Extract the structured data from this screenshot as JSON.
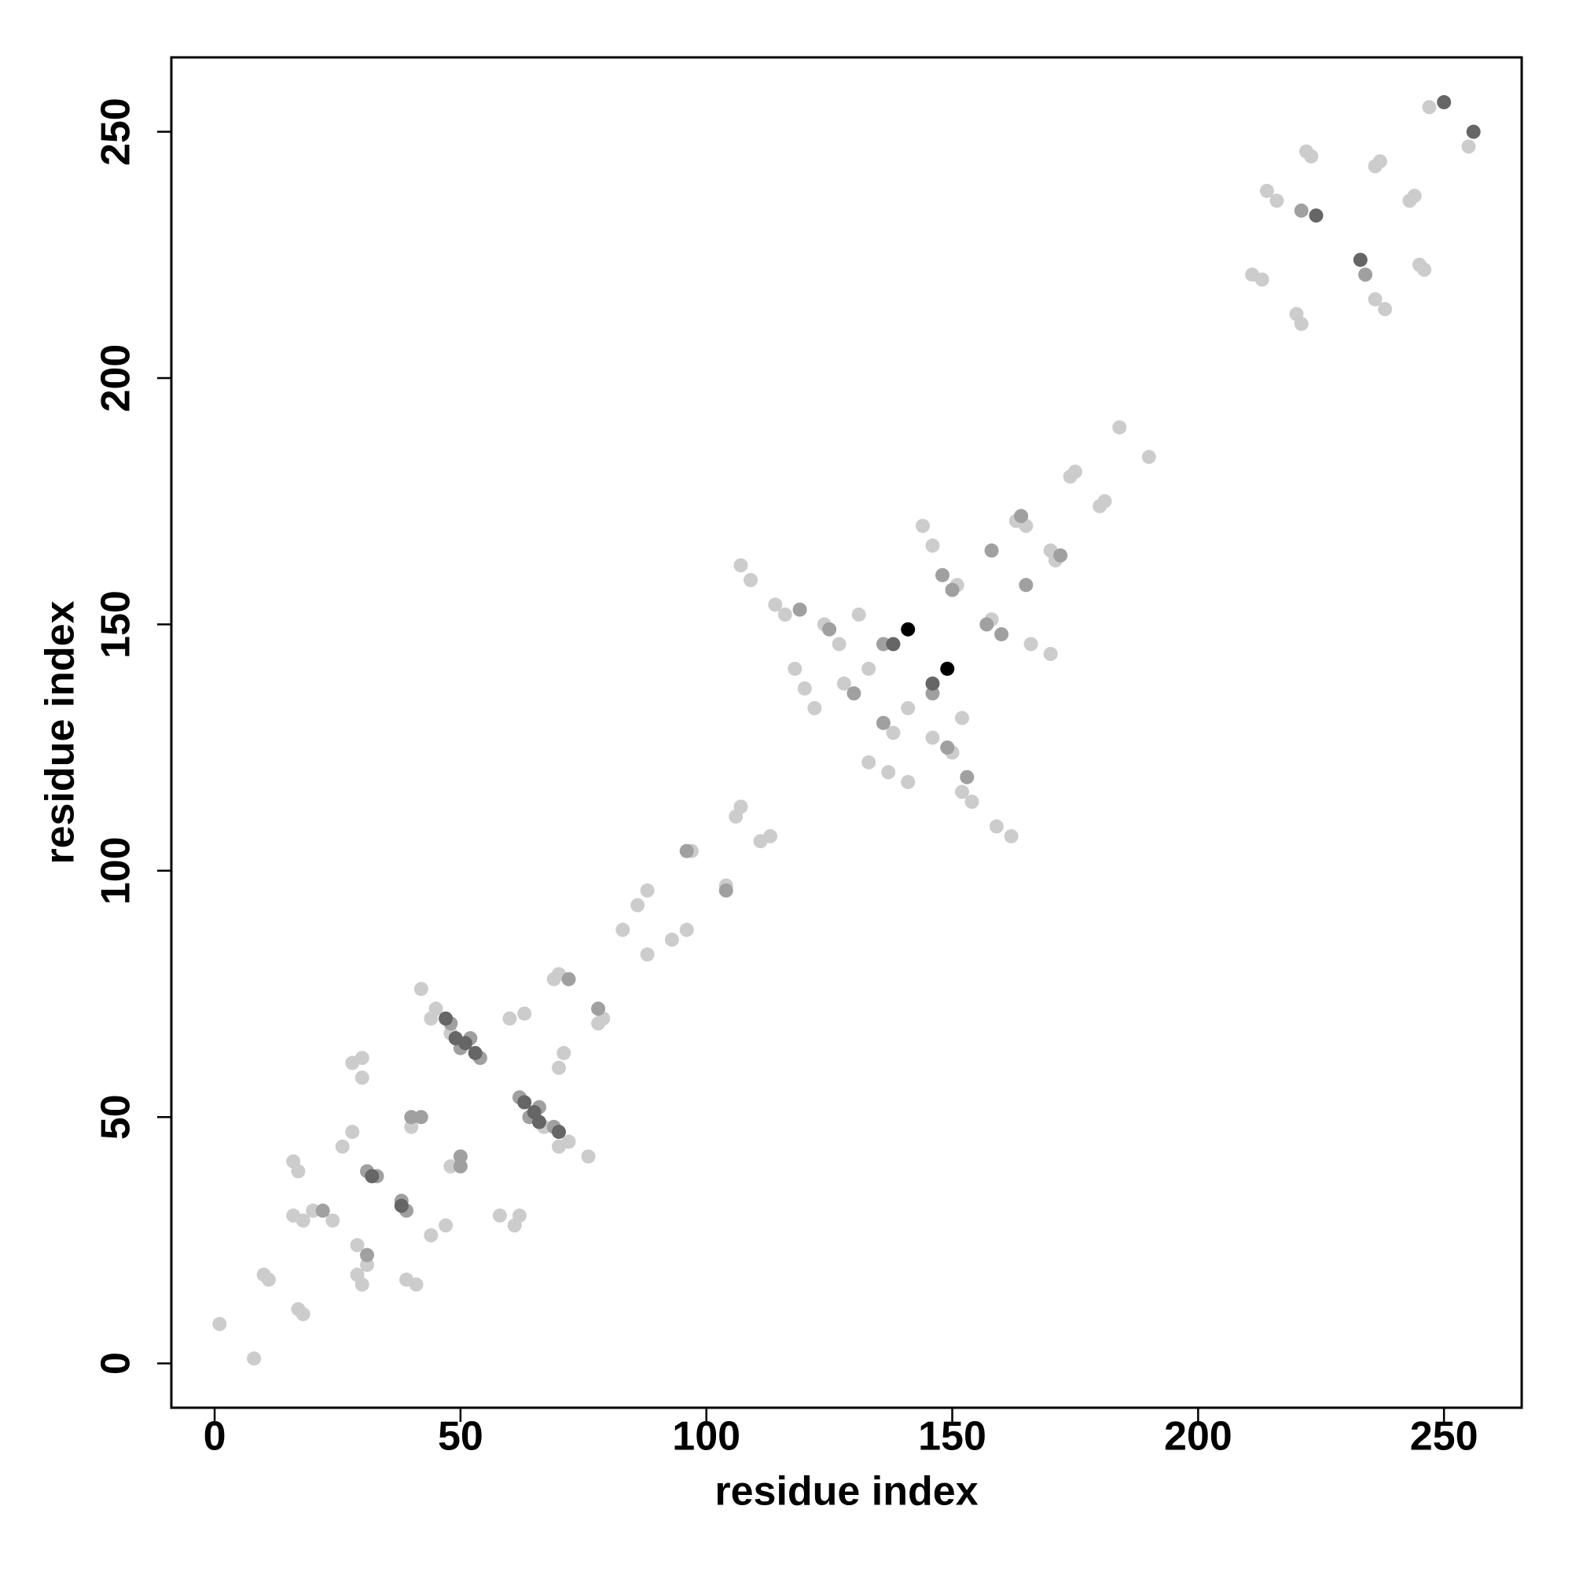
{
  "chart_data": {
    "type": "scatter",
    "xlabel": "residue index",
    "ylabel": "residue index",
    "xlim": [
      -8.8,
      265.8
    ],
    "ylim": [
      -9,
      265.1
    ],
    "xticks": [
      0,
      50,
      100,
      150,
      200,
      250
    ],
    "yticks": [
      0,
      50,
      100,
      150,
      200,
      250
    ],
    "series": [
      {
        "color": "#cccccc",
        "x": [
          1,
          11,
          10,
          16,
          17,
          18,
          16,
          20,
          24,
          30,
          28,
          30,
          28,
          26,
          40,
          45,
          42,
          44,
          48,
          70,
          69,
          88,
          86,
          97,
          107,
          106,
          107,
          109,
          114,
          116,
          118,
          120,
          122,
          124,
          127,
          131,
          128,
          133,
          146,
          144,
          151,
          163,
          165,
          175,
          174,
          184,
          211,
          213,
          214,
          216,
          222,
          223,
          237,
          236,
          247,
          83,
          60,
          63,
          8,
          17,
          18,
          41,
          39,
          29,
          30,
          31,
          29,
          62,
          61,
          58,
          47,
          44,
          48,
          72,
          76,
          70,
          67,
          79,
          78,
          96,
          93,
          104,
          113,
          111,
          162,
          159,
          154,
          152,
          141,
          137,
          133,
          150,
          146,
          152,
          138,
          141,
          166,
          170,
          158,
          171,
          170,
          181,
          180,
          190,
          221,
          220,
          238,
          236,
          246,
          245,
          244,
          243,
          255,
          88,
          70,
          71
        ],
        "y": [
          8,
          17,
          18,
          41,
          39,
          29,
          30,
          31,
          29,
          62,
          61,
          58,
          47,
          44,
          48,
          72,
          76,
          70,
          67,
          79,
          78,
          96,
          93,
          104,
          113,
          111,
          162,
          159,
          154,
          152,
          141,
          137,
          133,
          150,
          146,
          152,
          138,
          141,
          166,
          170,
          158,
          171,
          170,
          181,
          180,
          190,
          221,
          220,
          238,
          236,
          246,
          245,
          244,
          243,
          255,
          88,
          70,
          71,
          1,
          11,
          10,
          16,
          17,
          18,
          16,
          20,
          24,
          30,
          28,
          30,
          28,
          26,
          40,
          45,
          42,
          44,
          48,
          70,
          69,
          88,
          86,
          97,
          107,
          106,
          107,
          109,
          114,
          116,
          118,
          120,
          122,
          124,
          127,
          131,
          128,
          133,
          146,
          144,
          151,
          163,
          165,
          175,
          174,
          184,
          211,
          213,
          214,
          216,
          222,
          223,
          237,
          236,
          247,
          83,
          60,
          63
        ]
      },
      {
        "color": "#a0a0a0",
        "x": [
          31,
          33,
          42,
          50,
          52,
          54,
          48,
          72,
          96,
          119,
          125,
          130,
          136,
          148,
          150,
          158,
          164,
          221,
          40,
          22,
          39,
          38,
          50,
          64,
          66,
          62,
          69,
          78,
          104,
          153,
          149,
          136,
          146,
          160,
          157,
          165,
          172,
          234,
          50,
          31
        ],
        "y": [
          39,
          38,
          50,
          64,
          66,
          62,
          69,
          78,
          104,
          153,
          149,
          136,
          146,
          160,
          157,
          165,
          172,
          234,
          50,
          31,
          31,
          33,
          42,
          50,
          52,
          54,
          48,
          72,
          96,
          119,
          125,
          130,
          136,
          148,
          150,
          158,
          164,
          221,
          40,
          22
        ]
      },
      {
        "color": "#666666",
        "x": [
          32,
          47,
          51,
          53,
          138,
          224,
          250,
          49,
          38,
          70,
          65,
          63,
          146,
          233,
          256,
          66
        ],
        "y": [
          38,
          70,
          65,
          63,
          146,
          233,
          256,
          66,
          32,
          47,
          51,
          53,
          138,
          224,
          250,
          49
        ]
      },
      {
        "color": "#000000",
        "x": [
          141,
          149
        ],
        "y": [
          149,
          141
        ]
      }
    ]
  }
}
